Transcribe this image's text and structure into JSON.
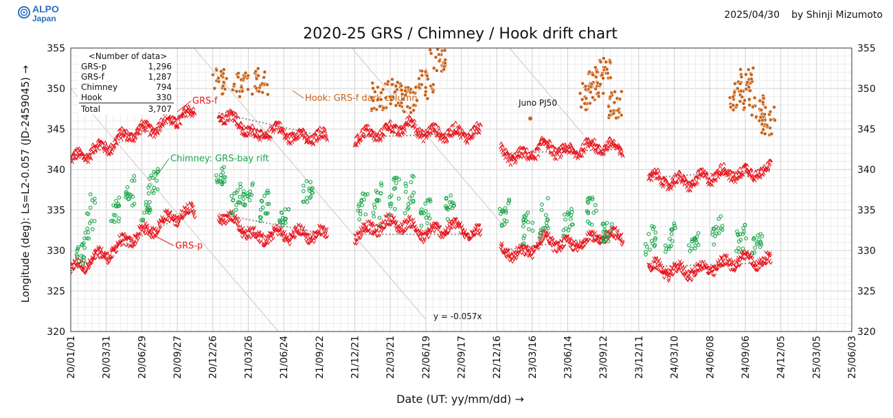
{
  "logo": {
    "line1": "ALPO",
    "line2": "Japan",
    "color": "#2a6fbf"
  },
  "date": "2025/04/30",
  "author": "by Shinji Mizumoto",
  "chart_data": {
    "type": "scatter",
    "title": "2020-25 GRS / Chimney / Hook drift chart",
    "xlabel": "Date (UT: yy/mm/dd) →",
    "ylabel": "Longitude (deg): Ls=L2-0.057 (JD-2459045) →",
    "ylim": [
      320,
      355
    ],
    "xlim_days": [
      0,
      1980
    ],
    "x_ticks": [
      "20/01/01",
      "20/03/31",
      "20/06/29",
      "20/09/27",
      "20/12/26",
      "21/03/26",
      "21/06/24",
      "21/09/22",
      "21/12/21",
      "22/03/21",
      "22/06/19",
      "22/09/17",
      "22/12/16",
      "23/03/16",
      "23/06/14",
      "23/09/12",
      "23/12/11",
      "24/03/10",
      "24/06/08",
      "24/09/06",
      "24/12/05",
      "25/03/05",
      "25/06/03"
    ],
    "y_ticks": [
      320,
      325,
      330,
      335,
      340,
      345,
      350,
      355
    ],
    "grid": true,
    "colors": {
      "grs": "#e8141c",
      "chimney": "#1aa64a",
      "hook": "#c8621a",
      "trend": "#8a8a8a",
      "drift": "#c8c8c8"
    },
    "counts_table": {
      "header": "<Number of data>",
      "rows": [
        {
          "label": "GRS-p",
          "value": "1,296"
        },
        {
          "label": "GRS-f",
          "value": "1,287"
        },
        {
          "label": "Chimney",
          "value": "794"
        },
        {
          "label": "Hook",
          "value": "330"
        }
      ],
      "total": {
        "label": "Total",
        "value": "3,707"
      }
    },
    "annotations": {
      "grs_f": "GRS-f",
      "grs_p": "GRS-p",
      "hook": "Hook: GRS-f dark column",
      "chimney": "Chimney: GRS-bay rift",
      "juno": "Juno PJ50",
      "slope": "y = -0.057x"
    },
    "apparitions": [
      {
        "x": [
          0,
          315
        ],
        "grs_p": [
          [
            0,
            327.5
          ],
          [
            60,
            329
          ],
          [
            90,
            329.5
          ],
          [
            150,
            331.5
          ],
          [
            200,
            332.5
          ],
          [
            250,
            334
          ],
          [
            315,
            335
          ]
        ],
        "grs_f": [
          [
            0,
            341
          ],
          [
            60,
            342.5
          ],
          [
            100,
            343
          ],
          [
            150,
            344.5
          ],
          [
            200,
            345
          ],
          [
            250,
            346
          ],
          [
            315,
            347
          ]
        ],
        "chimney": [
          [
            25,
            328,
            331
          ],
          [
            50,
            331,
            337
          ],
          [
            110,
            333,
            336
          ],
          [
            150,
            335,
            339
          ],
          [
            190,
            334,
            336
          ],
          [
            210,
            337,
            340
          ]
        ],
        "hook": []
      },
      {
        "x": [
          375,
          650
        ],
        "grs_p": [
          [
            375,
            334.5
          ],
          [
            420,
            333.5
          ],
          [
            470,
            331.5
          ],
          [
            520,
            332
          ],
          [
            570,
            332
          ],
          [
            650,
            332
          ]
        ],
        "grs_f": [
          [
            375,
            347
          ],
          [
            420,
            346
          ],
          [
            470,
            344
          ],
          [
            520,
            345
          ],
          [
            570,
            344
          ],
          [
            650,
            344
          ]
        ],
        "chimney": [
          [
            380,
            338,
            340
          ],
          [
            420,
            335,
            338
          ],
          [
            450,
            336,
            338
          ],
          [
            490,
            334,
            337
          ],
          [
            540,
            333,
            335
          ],
          [
            600,
            336,
            339
          ]
        ],
        "hook": [
          [
            375,
            351
          ],
          [
            430,
            350.5
          ],
          [
            480,
            351
          ]
        ]
      },
      {
        "x": [
          720,
          1040
        ],
        "grs_p": [
          [
            720,
            332
          ],
          [
            780,
            333
          ],
          [
            820,
            333.5
          ],
          [
            860,
            333
          ],
          [
            900,
            332
          ],
          [
            960,
            333
          ],
          [
            1040,
            332
          ]
        ],
        "grs_f": [
          [
            720,
            344
          ],
          [
            780,
            344.5
          ],
          [
            820,
            345
          ],
          [
            860,
            345.5
          ],
          [
            900,
            344.5
          ],
          [
            960,
            344.5
          ],
          [
            1040,
            344.5
          ]
        ],
        "chimney": [
          [
            740,
            334,
            337
          ],
          [
            780,
            333,
            338
          ],
          [
            820,
            335,
            339
          ],
          [
            860,
            335,
            339
          ],
          [
            900,
            333,
            336
          ],
          [
            960,
            334,
            337
          ]
        ],
        "hook": [
          [
            780,
            349
          ],
          [
            820,
            349.5
          ],
          [
            860,
            348.5
          ],
          [
            900,
            350.5
          ],
          [
            930,
            353.5
          ]
        ]
      },
      {
        "x": [
          1090,
          1400
        ],
        "grs_p": [
          [
            1090,
            330
          ],
          [
            1150,
            329.5
          ],
          [
            1200,
            331.5
          ],
          [
            1260,
            330.5
          ],
          [
            1320,
            331.5
          ],
          [
            1400,
            332
          ]
        ],
        "grs_f": [
          [
            1090,
            342
          ],
          [
            1150,
            341.5
          ],
          [
            1200,
            343
          ],
          [
            1260,
            342
          ],
          [
            1320,
            343
          ],
          [
            1400,
            342.5
          ]
        ],
        "chimney": [
          [
            1100,
            333,
            336
          ],
          [
            1160,
            331,
            335
          ],
          [
            1200,
            332,
            336
          ],
          [
            1260,
            332,
            335
          ],
          [
            1320,
            333,
            337
          ],
          [
            1360,
            331,
            334
          ]
        ],
        "hook": [
          [
            1310,
            349
          ],
          [
            1330,
            350.5
          ],
          [
            1350,
            352
          ],
          [
            1380,
            348
          ]
        ]
      },
      {
        "x": [
          1465,
          1775
        ],
        "grs_p": [
          [
            1465,
            328
          ],
          [
            1520,
            327.5
          ],
          [
            1580,
            327.5
          ],
          [
            1640,
            328
          ],
          [
            1700,
            329
          ],
          [
            1775,
            328.5
          ]
        ],
        "grs_f": [
          [
            1465,
            339
          ],
          [
            1520,
            338.5
          ],
          [
            1580,
            338.5
          ],
          [
            1640,
            339.5
          ],
          [
            1700,
            339.5
          ],
          [
            1775,
            340
          ]
        ],
        "chimney": [
          [
            1470,
            330,
            333
          ],
          [
            1520,
            330,
            333
          ],
          [
            1580,
            330,
            332
          ],
          [
            1640,
            331,
            334
          ],
          [
            1700,
            330,
            333
          ],
          [
            1740,
            330,
            332
          ]
        ],
        "hook": [
          [
            1690,
            349
          ],
          [
            1710,
            351
          ],
          [
            1740,
            348
          ],
          [
            1765,
            346
          ]
        ]
      }
    ],
    "juno_point": {
      "x": 1165,
      "y": 346.3
    },
    "drift_lines": [
      {
        "x0": -100,
        "y0": 355.7
      },
      {
        "x0": 100,
        "y0": 367.1
      },
      {
        "x0": 300,
        "y0": 378.5
      },
      {
        "x0": 500,
        "y0": 389.9
      },
      {
        "x0": 700,
        "y0": 401.3
      },
      {
        "x0": 900,
        "y0": 412.7
      },
      {
        "x0": 1100,
        "y0": 424.1
      }
    ]
  }
}
